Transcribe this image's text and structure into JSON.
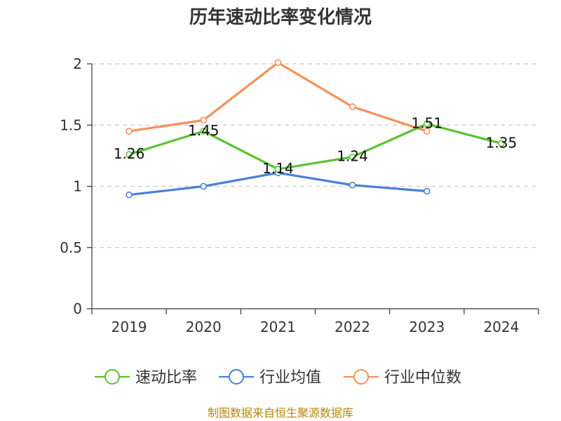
{
  "chart_data": {
    "type": "line",
    "title": "历年速动比率变化情况",
    "categories": [
      "2019",
      "2020",
      "2021",
      "2022",
      "2023",
      "2024"
    ],
    "ylim": [
      0,
      2
    ],
    "yticks": [
      "0",
      "0.5",
      "1",
      "1.5",
      "2"
    ],
    "grid": true,
    "legend_position": "bottom",
    "series": [
      {
        "name": "速动比率",
        "color": "#5cc231",
        "values": [
          1.26,
          1.45,
          1.14,
          1.24,
          1.51,
          1.35
        ],
        "labels": [
          "1.26",
          "1.45",
          "1.14",
          "1.24",
          "1.51",
          "1.35"
        ]
      },
      {
        "name": "行业均值",
        "color": "#4a7fd8",
        "values": [
          0.93,
          1.0,
          1.11,
          1.01,
          0.96,
          null
        ]
      },
      {
        "name": "行业中位数",
        "color": "#f7905a",
        "values": [
          1.45,
          1.54,
          2.01,
          1.65,
          1.45,
          null
        ]
      }
    ]
  },
  "source": "制图数据来自恒生聚源数据库"
}
